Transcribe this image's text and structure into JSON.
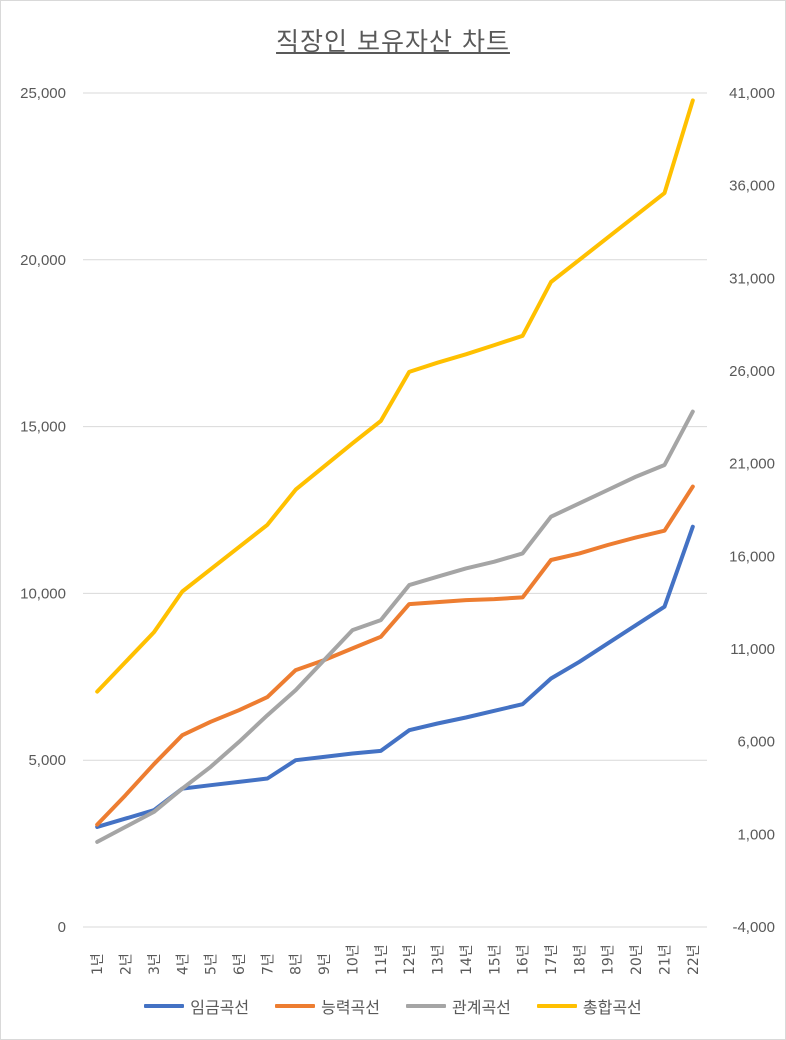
{
  "chart_data": {
    "type": "line",
    "title": "직장인 보유자산 차트",
    "categories": [
      "1년",
      "2년",
      "3년",
      "4년",
      "5년",
      "6년",
      "7년",
      "8년",
      "9년",
      "10년",
      "11년",
      "12년",
      "13년",
      "14년",
      "15년",
      "16년",
      "17년",
      "18년",
      "19년",
      "20년",
      "21년",
      "22년"
    ],
    "primary_axis": {
      "ylim": [
        0,
        25000
      ],
      "ticks": [
        0,
        5000,
        10000,
        15000,
        20000,
        25000
      ],
      "tick_labels": [
        "0",
        "5,000",
        "10,000",
        "15,000",
        "20,000",
        "25,000"
      ],
      "gridlines": true
    },
    "secondary_axis": {
      "ylim": [
        -4000,
        41000
      ],
      "ticks": [
        -4000,
        1000,
        6000,
        11000,
        16000,
        21000,
        26000,
        31000,
        36000,
        41000
      ],
      "tick_labels": [
        "-4,000",
        "1,000",
        "6,000",
        "11,000",
        "16,000",
        "21,000",
        "26,000",
        "31,000",
        "36,000",
        "41,000"
      ]
    },
    "series": [
      {
        "name": "임금곡선",
        "color": "#4472c4",
        "axis": "primary",
        "values": [
          3000,
          3250,
          3500,
          4150,
          4250,
          4350,
          4450,
          5000,
          5100,
          5200,
          5280,
          5900,
          6100,
          6280,
          6480,
          6680,
          7450,
          7950,
          8500,
          9050,
          9600,
          12000
        ]
      },
      {
        "name": "능력곡선",
        "color": "#ed7d31",
        "axis": "primary",
        "values": [
          3070,
          3950,
          4880,
          5750,
          6150,
          6500,
          6890,
          7700,
          8000,
          8350,
          8700,
          9680,
          9740,
          9800,
          9830,
          9880,
          11000,
          11200,
          11450,
          11680,
          11880,
          13200
        ]
      },
      {
        "name": "관계곡선",
        "color": "#a5a5a5",
        "axis": "primary",
        "values": [
          2550,
          3000,
          3450,
          4150,
          4800,
          5550,
          6350,
          7100,
          8000,
          8900,
          9200,
          10250,
          10500,
          10750,
          10950,
          11200,
          12300,
          12700,
          13100,
          13500,
          13850,
          15450
        ]
      },
      {
        "name": "총합곡선",
        "color": "#ffc000",
        "axis": "secondary",
        "values": [
          8700,
          10300,
          11900,
          14100,
          15300,
          16500,
          17700,
          19600,
          20850,
          22100,
          23300,
          25950,
          26450,
          26900,
          27400,
          27900,
          30800,
          32000,
          33200,
          34400,
          35600,
          40600
        ]
      }
    ],
    "legend": [
      "임금곡선",
      "능력곡선",
      "관계곡선",
      "총합곡선"
    ],
    "legend_position": "bottom"
  }
}
